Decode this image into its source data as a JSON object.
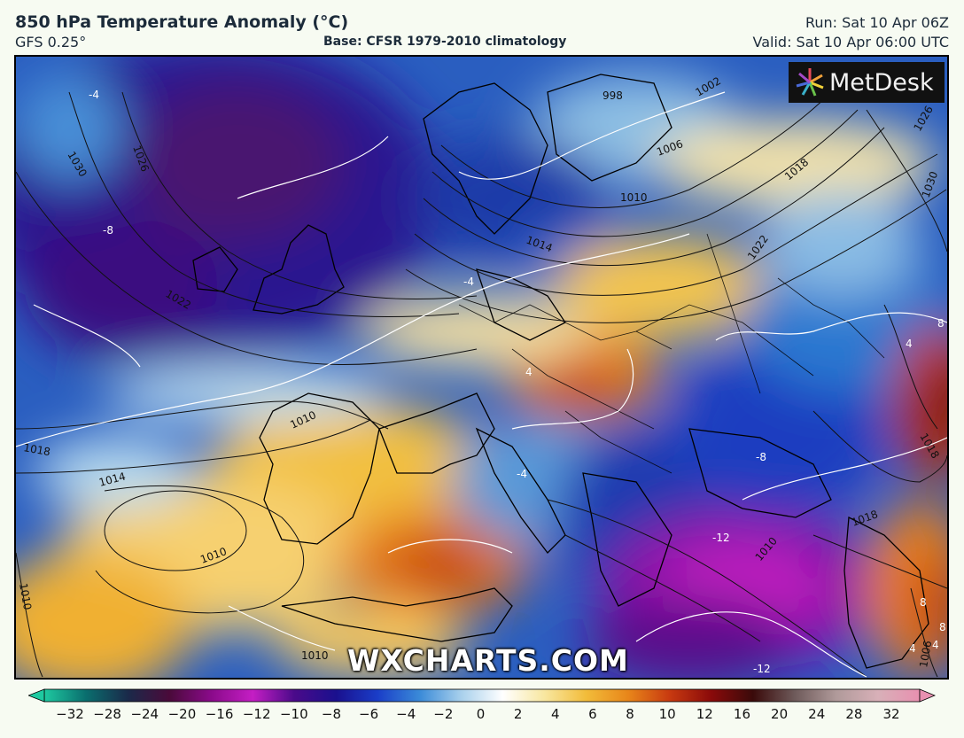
{
  "header": {
    "title": "850 hPa Temperature Anomaly (°C)",
    "model": "GFS 0.25°",
    "base": "Base: CFSR 1979-2010 climatology",
    "run": "Run: Sat 10 Apr 06Z",
    "valid": "Valid: Sat 10 Apr 06:00 UTC"
  },
  "logo": {
    "text": "MetDesk",
    "icon": "metdesk-star-icon"
  },
  "watermark": "WXCHARTS.COM",
  "colorbar": {
    "ticks": [
      "−32",
      "−28",
      "−24",
      "−20",
      "−16",
      "−12",
      "−10",
      "−8",
      "−6",
      "−4",
      "−2",
      "0",
      "2",
      "4",
      "6",
      "8",
      "10",
      "12",
      "16",
      "20",
      "24",
      "28",
      "32"
    ],
    "colors": [
      "#1ec9a0",
      "#0a6e6e",
      "#1a2a4a",
      "#4a0a3a",
      "#8a0a8a",
      "#c41ec4",
      "#4a0a8a",
      "#1a108e",
      "#1a3ec8",
      "#3a8ad8",
      "#a8d0ec",
      "#ffffff",
      "#f8e7a0",
      "#f2bc3a",
      "#e8861a",
      "#c83a10",
      "#8a0a0a",
      "#3a0a0a",
      "#6e5a5a",
      "#b09a9a",
      "#d8b0b8",
      "#e890b0"
    ]
  },
  "map": {
    "isobar_labels": [
      "998",
      "1002",
      "1006",
      "1010",
      "1014",
      "1018",
      "1022",
      "1026",
      "1030",
      "1030",
      "1026",
      "1022",
      "1018",
      "1014",
      "1010",
      "1010",
      "1010",
      "1010",
      "1018",
      "1018",
      "1006",
      "1010"
    ],
    "anomaly_labels": [
      "-4",
      "-8",
      "-4",
      "4",
      "-4",
      "-8",
      "-12",
      "-12",
      "4",
      "8",
      "8",
      "8",
      "4",
      "4"
    ]
  }
}
